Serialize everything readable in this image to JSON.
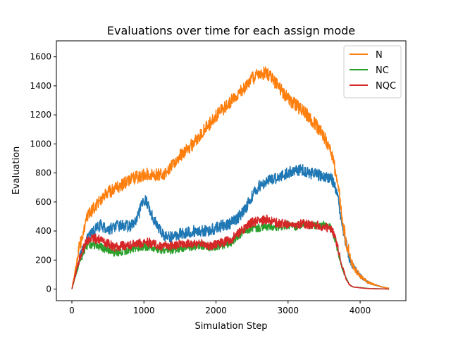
{
  "chart_data": {
    "type": "line",
    "title": "Evaluations over time for each assign mode",
    "xlabel": "Simulation Step",
    "ylabel": "Evaluation",
    "xlim": [
      -215,
      4635
    ],
    "ylim": [
      -80,
      1710
    ],
    "xticks": [
      0,
      1000,
      2000,
      3000,
      4000
    ],
    "yticks": [
      0,
      200,
      400,
      600,
      800,
      1000,
      1200,
      1400,
      1600
    ],
    "grid": false,
    "legend_position": "top-right",
    "legend_entries": [
      "N",
      "NC",
      "NQC"
    ],
    "series": [
      {
        "name": "",
        "color": "#1f77b4",
        "in_legend": false,
        "noise": 40,
        "x": [
          0,
          100,
          200,
          300,
          400,
          500,
          600,
          700,
          800,
          900,
          950,
          1000,
          1050,
          1100,
          1200,
          1300,
          1400,
          1500,
          1600,
          1700,
          1800,
          1900,
          2000,
          2100,
          2200,
          2300,
          2400,
          2500,
          2600,
          2700,
          2800,
          2900,
          3000,
          3100,
          3200,
          3300,
          3400,
          3500,
          3600,
          3650,
          3700,
          3750,
          3800,
          3850,
          3900,
          4000,
          4100,
          4200,
          4300,
          4400
        ],
        "y": [
          0,
          200,
          330,
          400,
          440,
          410,
          430,
          440,
          430,
          470,
          550,
          620,
          590,
          520,
          420,
          360,
          360,
          380,
          390,
          400,
          400,
          400,
          420,
          440,
          450,
          490,
          550,
          640,
          710,
          740,
          760,
          780,
          800,
          820,
          820,
          800,
          790,
          770,
          770,
          700,
          600,
          450,
          320,
          220,
          160,
          90,
          50,
          30,
          15,
          5
        ]
      },
      {
        "name": "N",
        "color": "#ff7f0e",
        "in_legend": true,
        "noise": 45,
        "x": [
          0,
          100,
          200,
          300,
          400,
          500,
          600,
          700,
          800,
          900,
          1000,
          1100,
          1200,
          1300,
          1400,
          1500,
          1600,
          1700,
          1800,
          1900,
          2000,
          2100,
          2200,
          2300,
          2400,
          2500,
          2600,
          2700,
          2800,
          2900,
          3000,
          3100,
          3200,
          3300,
          3400,
          3500,
          3600,
          3700,
          3750,
          3800,
          3850,
          3900,
          4000,
          4100,
          4200,
          4300,
          4400
        ],
        "y": [
          0,
          280,
          480,
          560,
          620,
          660,
          690,
          720,
          750,
          770,
          790,
          790,
          790,
          800,
          860,
          920,
          960,
          1010,
          1080,
          1130,
          1190,
          1240,
          1290,
          1340,
          1390,
          1450,
          1480,
          1490,
          1440,
          1380,
          1310,
          1270,
          1230,
          1180,
          1120,
          1050,
          950,
          700,
          480,
          340,
          250,
          160,
          90,
          50,
          30,
          15,
          5
        ]
      },
      {
        "name": "NC",
        "color": "#2ca02c",
        "in_legend": true,
        "noise": 28,
        "x": [
          0,
          100,
          200,
          300,
          400,
          500,
          600,
          700,
          800,
          900,
          1000,
          1100,
          1200,
          1300,
          1400,
          1500,
          1600,
          1700,
          1800,
          1900,
          2000,
          2100,
          2200,
          2300,
          2400,
          2500,
          2600,
          2700,
          2800,
          2900,
          3000,
          3100,
          3200,
          3300,
          3400,
          3500,
          3600,
          3650,
          3700,
          3750,
          3800,
          3850,
          3900,
          4000,
          4100,
          4200,
          4300,
          4400
        ],
        "y": [
          0,
          180,
          300,
          300,
          290,
          270,
          250,
          260,
          270,
          280,
          290,
          290,
          270,
          260,
          270,
          280,
          290,
          290,
          300,
          290,
          290,
          300,
          320,
          360,
          400,
          420,
          420,
          430,
          420,
          430,
          440,
          430,
          450,
          440,
          440,
          440,
          420,
          350,
          250,
          150,
          80,
          30,
          15,
          10,
          5,
          3,
          2,
          0
        ]
      },
      {
        "name": "NQC",
        "color": "#d62728",
        "in_legend": true,
        "noise": 32,
        "x": [
          0,
          100,
          200,
          300,
          400,
          500,
          600,
          700,
          800,
          900,
          1000,
          1100,
          1200,
          1300,
          1400,
          1500,
          1600,
          1700,
          1800,
          1900,
          2000,
          2100,
          2200,
          2300,
          2400,
          2500,
          2600,
          2700,
          2800,
          2900,
          3000,
          3100,
          3200,
          3300,
          3400,
          3500,
          3600,
          3650,
          3700,
          3750,
          3800,
          3850,
          3900,
          4000,
          4100,
          4200,
          4300,
          4400
        ],
        "y": [
          0,
          200,
          330,
          350,
          340,
          310,
          290,
          300,
          300,
          310,
          320,
          320,
          300,
          300,
          300,
          310,
          310,
          310,
          310,
          300,
          310,
          320,
          340,
          380,
          420,
          460,
          470,
          480,
          460,
          450,
          450,
          440,
          450,
          440,
          440,
          430,
          420,
          360,
          260,
          160,
          80,
          30,
          15,
          8,
          4,
          2,
          1,
          0
        ]
      }
    ]
  }
}
